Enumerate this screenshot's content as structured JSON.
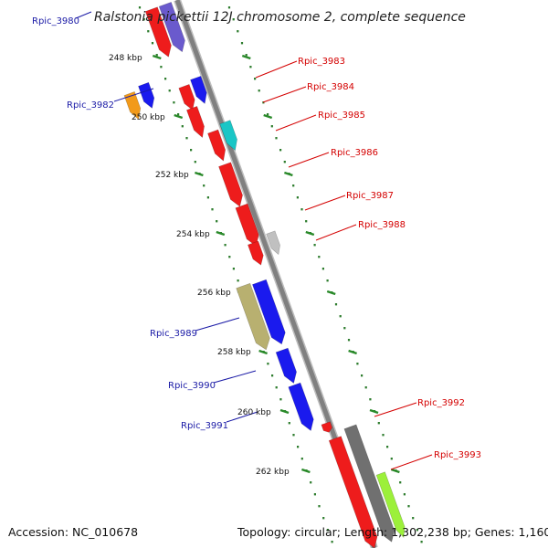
{
  "title": "Ralstonia pickettii 12J chromosome 2, complete sequence",
  "footer": {
    "accession": "Accession: NC_010678",
    "summary": "Topology: circular; Length: 1,302,238 bp; Genes: 1,160"
  },
  "colors": {
    "backbone": "#808080",
    "track_dots": "#2e7d2e",
    "tick": "#2a8a2a",
    "label_red": "#d40000",
    "label_blue": "#1a1aa6"
  },
  "ticks": [
    "248 kbp",
    "250 kbp",
    "252 kbp",
    "254 kbp",
    "256 kbp",
    "258 kbp",
    "260 kbp",
    "262 kbp"
  ],
  "genes": [
    {
      "name": "Rpic_3980",
      "color": "#1a1aa6"
    },
    {
      "name": "Rpic_3982",
      "color": "#1a1aa6"
    },
    {
      "name": "Rpic_3983",
      "color": "#d40000"
    },
    {
      "name": "Rpic_3984",
      "color": "#d40000"
    },
    {
      "name": "Rpic_3985",
      "color": "#d40000"
    },
    {
      "name": "Rpic_3986",
      "color": "#d40000"
    },
    {
      "name": "Rpic_3987",
      "color": "#d40000"
    },
    {
      "name": "Rpic_3988",
      "color": "#d40000"
    },
    {
      "name": "Rpic_3989",
      "color": "#1a1aa6"
    },
    {
      "name": "Rpic_3990",
      "color": "#1a1aa6"
    },
    {
      "name": "Rpic_3991",
      "color": "#1a1aa6"
    },
    {
      "name": "Rpic_3992",
      "color": "#d40000"
    },
    {
      "name": "Rpic_3993",
      "color": "#d40000"
    }
  ]
}
